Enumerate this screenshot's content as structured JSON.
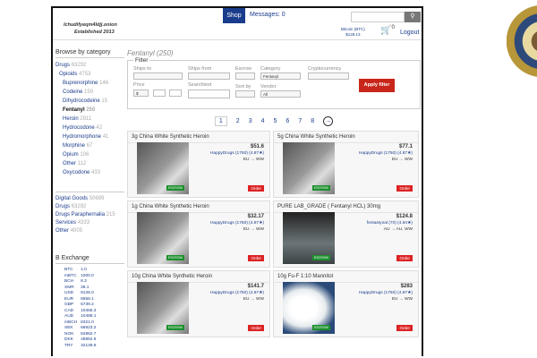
{
  "header": {
    "site_onion": "lchudifyeqm4ldjj.onion",
    "established": "Established 2013",
    "shop": "Shop",
    "messages": "Messages: 0",
    "search_button": "⚲",
    "btc_label": "Bitcoin (BTC)",
    "btc_price": "$128.13",
    "cart_count": "0",
    "logout": "Logout"
  },
  "sidebar": {
    "title": "Browse by category",
    "items": [
      {
        "label": "Drugs",
        "count": "63292"
      },
      {
        "label": "Opioids",
        "count": "4753"
      },
      {
        "label": "Buprenorphine",
        "count": "146"
      },
      {
        "label": "Codeine",
        "count": "159"
      },
      {
        "label": "Dihydrocodeine",
        "count": "15"
      },
      {
        "label": "Fentanyl",
        "count": "250"
      },
      {
        "label": "Heroin",
        "count": "2911"
      },
      {
        "label": "Hydrocodone",
        "count": "42"
      },
      {
        "label": "Hydromorphone",
        "count": "41"
      },
      {
        "label": "Morphine",
        "count": "67"
      },
      {
        "label": "Opium",
        "count": "106"
      },
      {
        "label": "Other",
        "count": "112"
      },
      {
        "label": "Oxycodone",
        "count": "433"
      }
    ],
    "groups": [
      {
        "label": "Digital Goods",
        "count": "50689"
      },
      {
        "label": "Drugs",
        "count": "63292"
      },
      {
        "label": "Drugs Paraphernalia",
        "count": "215"
      },
      {
        "label": "Services",
        "count": "4333"
      },
      {
        "label": "Other",
        "count": "4005"
      }
    ]
  },
  "exchange": {
    "title": "B Exchange",
    "rows": [
      [
        "BTC",
        "1.0"
      ],
      [
        "mBTC",
        "1000.0"
      ],
      [
        "BCH",
        "8.3"
      ],
      [
        "XMR",
        "36.1"
      ],
      [
        "USD",
        "8126.0"
      ],
      [
        "EUR",
        "6558.1"
      ],
      [
        "GBP",
        "5739.2"
      ],
      [
        "CAD",
        "10455.3"
      ],
      [
        "AUD",
        "10488.1"
      ],
      [
        "mBCH",
        "8321.0"
      ],
      [
        "SEK",
        "66923.2"
      ],
      [
        "NOK",
        "62882.7"
      ],
      [
        "DKK",
        "48852.6"
      ],
      [
        "TRY",
        "32139.9"
      ]
    ]
  },
  "main": {
    "title": "Fentanyl (250)",
    "filter": {
      "legend": "Filter",
      "ships_to": "Ships to",
      "ships_from": "Ships from",
      "escrow": "Escrow",
      "category": "Category",
      "category_value": "Fentanyl",
      "cryptocurrency": "Cryptocurrency",
      "price": "Price",
      "currency": "$",
      "searchtext": "Searchtext",
      "sort_by": "Sort by",
      "vendor": "Vendor",
      "vendor_value": "All",
      "apply": "Apply filter"
    },
    "pages": [
      "1",
      "2",
      "3",
      "4",
      "5",
      "6",
      "7",
      "8"
    ],
    "next": "→",
    "listings": [
      {
        "title": "3g China White Synthetic Heroin",
        "price": "$51.6",
        "vendor": "HappyDrugs (1750) (4.87★)",
        "ship": "EU → WW",
        "escrow": "ESCROW",
        "order": "Order"
      },
      {
        "title": "5g China White Synthetic Heroin",
        "price": "$77.1",
        "vendor": "HappyDrugs (1750) (4.87★)",
        "ship": "EU → WW",
        "escrow": "ESCROW",
        "order": "Order"
      },
      {
        "title": "1g China White Synthetic Heroin",
        "price": "$32.17",
        "vendor": "HappyDrugs (1750) (4.87★)",
        "ship": "EU → WW",
        "escrow": "ESCROW",
        "order": "Order"
      },
      {
        "title": "PURE LAB_GRADE ( Fentanyl HCL) 30mg",
        "price": "$124.8",
        "vendor": "fentastynal (70) (4.94★)",
        "ship": "AU → AU, WW",
        "escrow": "ESCROW",
        "order": "Order"
      },
      {
        "title": "10g China White Synthetic Heroin",
        "price": "$141.7",
        "vendor": "HappyDrugs (1750) (4.87★)",
        "ship": "EU → WW",
        "escrow": "ESCROW",
        "order": "Order"
      },
      {
        "title": "10g Fu-F 1:10 Mannitol",
        "price": "$283",
        "vendor": "HappyDrugs (1750) (4.87★)",
        "ship": "EU → WW",
        "escrow": "ESCROW",
        "order": "Order"
      }
    ]
  }
}
